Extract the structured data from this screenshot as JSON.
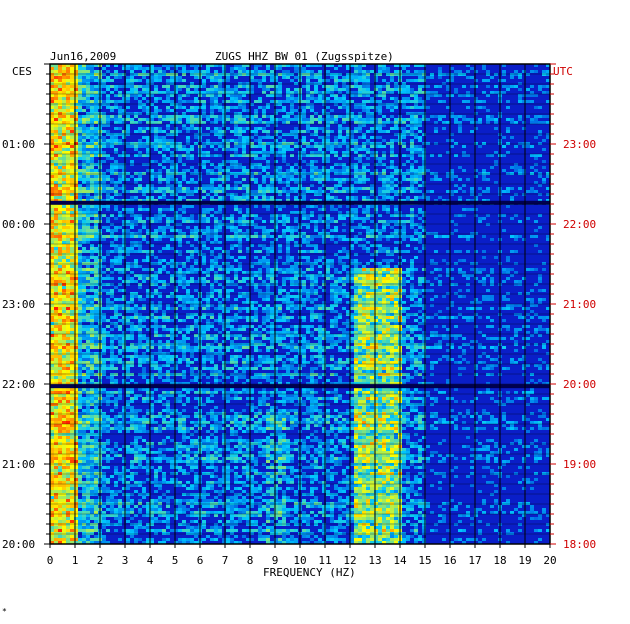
{
  "header": {
    "date": "Jun16,2009",
    "station": "ZUGS HHZ BW 01 (Zugsspitze)"
  },
  "chart_data": {
    "type": "heatmap",
    "title": "ZUGS HHZ BW 01 (Zugsspitze)",
    "date": "Jun16,2009",
    "xlabel": "FREQUENCY (HZ)",
    "x_ticks": [
      "0",
      "1",
      "2",
      "3",
      "4",
      "5",
      "6",
      "7",
      "8",
      "9",
      "10",
      "11",
      "12",
      "13",
      "14",
      "15",
      "16",
      "17",
      "18",
      "19",
      "20"
    ],
    "xlim": [
      0,
      20
    ],
    "left_axis_title": "CES",
    "left_ticks": [
      "01:00",
      "00:00",
      "23:00",
      "22:00",
      "21:00",
      "20:00"
    ],
    "right_axis_title": "UTC",
    "right_ticks": [
      "23:00",
      "22:00",
      "21:00",
      "20:00",
      "19:00",
      "18:00"
    ],
    "grid": true,
    "colors": {
      "background": "#0a1ec8",
      "grid": "#000000",
      "right_axis": "#d00000",
      "low": "#0000c8",
      "mid": "#00c8ff",
      "high": "#ffff00",
      "peak": "#ff2000"
    }
  },
  "footer_mark": "*"
}
